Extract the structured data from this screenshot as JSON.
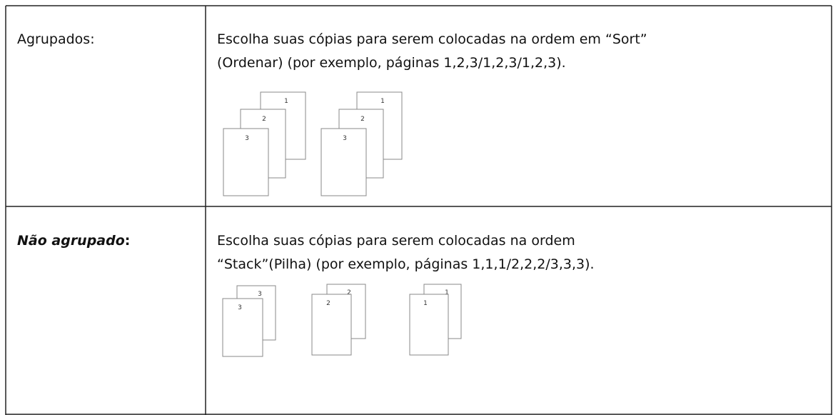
{
  "table": {
    "rows": [
      {
        "label": "Agrupados:",
        "description": [
          "Escolha suas cópias para serem colocadas na ordem em “Sort”",
          "(Ordenar) (por exemplo, páginas 1,2,3/1,2,3/1,2,3)."
        ],
        "illustrations": [
          [
            "1",
            "2",
            "3"
          ],
          [
            "1",
            "2",
            "3"
          ]
        ]
      },
      {
        "label": "Não agrupado",
        "label_suffix": ":",
        "description": [
          "Escolha suas cópias para serem colocadas na ordem",
          "“Stack”(Pilha) (por exemplo, páginas 1,1,1/2,2,2/3,3,3)."
        ],
        "illustrations": [
          [
            "3",
            "3"
          ],
          [
            "2",
            "2"
          ],
          [
            "1",
            "1"
          ]
        ]
      }
    ]
  }
}
